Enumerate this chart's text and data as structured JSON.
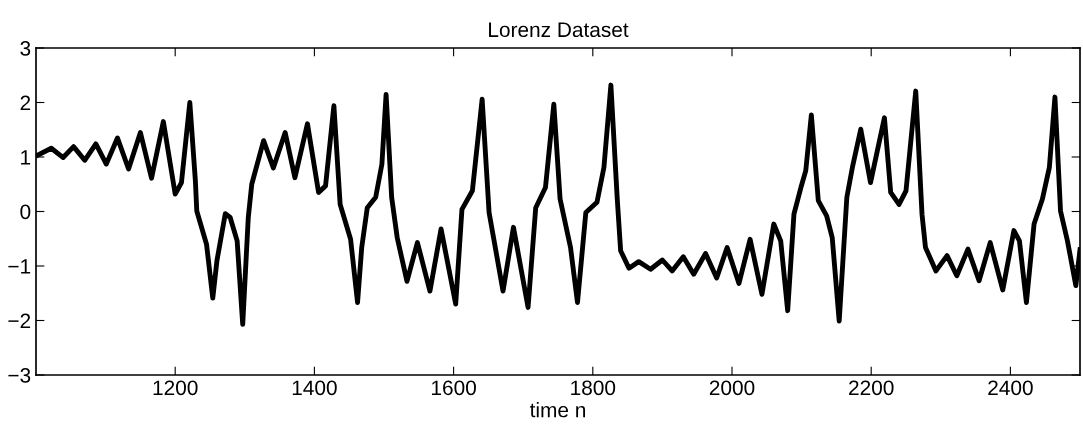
{
  "chart_data": {
    "type": "line",
    "title": "Lorenz Dataset",
    "xlabel": "time n",
    "xlim": [
      1000,
      2500
    ],
    "xticks": [
      1200,
      1400,
      1600,
      1800,
      2000,
      2200,
      2400
    ],
    "ylim": [
      -3,
      3
    ],
    "yticks": [
      {
        "value": -3,
        "label": "−3"
      },
      {
        "value": -2,
        "label": "−2"
      },
      {
        "value": -1,
        "label": "−1"
      },
      0,
      1,
      2,
      3
    ],
    "grid": false,
    "marker": "none",
    "line_style": "solid",
    "series": [
      {
        "color": "#000000",
        "x": [
          1000,
          1022,
          1039,
          1054,
          1070,
          1086,
          1101,
          1117,
          1133,
          1150,
          1166,
          1183,
          1200,
          1209,
          1221,
          1229,
          1231,
          1245,
          1254,
          1260,
          1272,
          1279,
          1289,
          1297,
          1305,
          1310,
          1327,
          1341,
          1358,
          1372,
          1390,
          1406,
          1416,
          1428,
          1437,
          1452,
          1462,
          1468,
          1476,
          1488,
          1497,
          1503,
          1511,
          1519,
          1533,
          1548,
          1566,
          1582,
          1603,
          1612,
          1627,
          1641,
          1651,
          1671,
          1686,
          1707,
          1718,
          1732,
          1744,
          1753,
          1768,
          1778,
          1790,
          1806,
          1816,
          1826,
          1835,
          1840,
          1852,
          1866,
          1883,
          1900,
          1914,
          1930,
          1945,
          1962,
          1978,
          1993,
          2010,
          2026,
          2043,
          2060,
          2070,
          2080,
          2089,
          2099,
          2106,
          2114,
          2124,
          2136,
          2144,
          2154,
          2165,
          2173,
          2185,
          2199,
          2219,
          2228,
          2240,
          2250,
          2264,
          2273,
          2278,
          2293,
          2309,
          2323,
          2339,
          2355,
          2371,
          2389,
          2405,
          2413,
          2423,
          2434,
          2446,
          2456,
          2464,
          2472,
          2482,
          2494,
          2500
        ],
        "values": [
          1.02,
          1.16,
          0.99,
          1.19,
          0.94,
          1.24,
          0.87,
          1.35,
          0.78,
          1.45,
          0.61,
          1.65,
          0.32,
          0.53,
          2.0,
          0.56,
          0.01,
          -0.6,
          -1.59,
          -0.9,
          -0.04,
          -0.11,
          -0.54,
          -2.07,
          -0.11,
          0.5,
          1.3,
          0.8,
          1.45,
          0.62,
          1.61,
          0.35,
          0.47,
          1.94,
          0.13,
          -0.51,
          -1.67,
          -0.66,
          0.07,
          0.26,
          0.87,
          2.15,
          0.26,
          -0.48,
          -1.28,
          -0.57,
          -1.46,
          -0.32,
          -1.7,
          0.04,
          0.38,
          2.06,
          -0.02,
          -1.46,
          -0.29,
          -1.76,
          0.07,
          0.44,
          1.97,
          0.23,
          -0.66,
          -1.67,
          -0.02,
          0.17,
          0.81,
          2.32,
          0.26,
          -0.72,
          -1.04,
          -0.92,
          -1.06,
          -0.89,
          -1.09,
          -0.83,
          -1.15,
          -0.77,
          -1.22,
          -0.66,
          -1.32,
          -0.51,
          -1.52,
          -0.23,
          -0.54,
          -1.82,
          -0.05,
          0.44,
          0.75,
          1.77,
          0.2,
          -0.08,
          -0.48,
          -2.01,
          0.26,
          0.81,
          1.51,
          0.53,
          1.72,
          0.35,
          0.13,
          0.38,
          2.21,
          -0.05,
          -0.66,
          -1.09,
          -0.81,
          -1.18,
          -0.69,
          -1.27,
          -0.57,
          -1.44,
          -0.35,
          -0.54,
          -1.67,
          -0.23,
          0.23,
          0.81,
          2.1,
          0.01,
          -0.54,
          -1.36,
          -0.7
        ]
      }
    ]
  }
}
